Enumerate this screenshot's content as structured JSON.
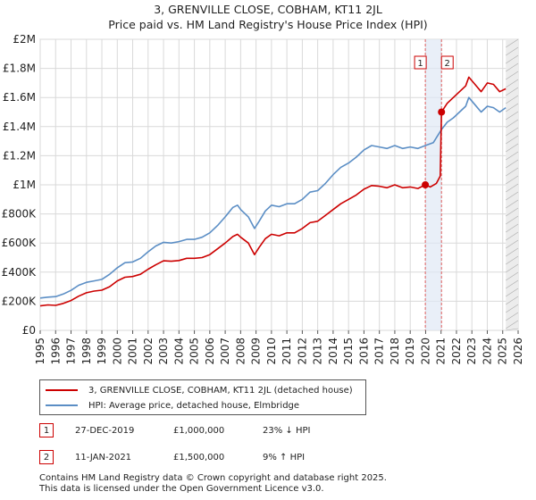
{
  "title_line1": "3, GRENVILLE CLOSE, COBHAM, KT11 2JL",
  "title_line2": "Price paid vs. HM Land Registry's House Price Index (HPI)",
  "chart_data": {
    "type": "line",
    "x_range": [
      1995,
      2026
    ],
    "ylim": [
      0,
      2000000
    ],
    "y_ticks": [
      {
        "value": 0,
        "label": "£0"
      },
      {
        "value": 200000,
        "label": "£200K"
      },
      {
        "value": 400000,
        "label": "£400K"
      },
      {
        "value": 600000,
        "label": "£600K"
      },
      {
        "value": 800000,
        "label": "£800K"
      },
      {
        "value": 1000000,
        "label": "£1M"
      },
      {
        "value": 1200000,
        "label": "£1.2M"
      },
      {
        "value": 1400000,
        "label": "£1.4M"
      },
      {
        "value": 1600000,
        "label": "£1.6M"
      },
      {
        "value": 1800000,
        "label": "£1.8M"
      },
      {
        "value": 2000000,
        "label": "£2M"
      }
    ],
    "x_ticks": [
      "1995",
      "1996",
      "1997",
      "1998",
      "1999",
      "2000",
      "2001",
      "2002",
      "2003",
      "2004",
      "2005",
      "2006",
      "2007",
      "2008",
      "2009",
      "2010",
      "2011",
      "2012",
      "2013",
      "2014",
      "2015",
      "2016",
      "2017",
      "2018",
      "2019",
      "2020",
      "2021",
      "2022",
      "2023",
      "2024",
      "2025",
      "2026"
    ],
    "series": [
      {
        "name": "3, GRENVILLE CLOSE, COBHAM, KT11 2JL (detached house)",
        "color": "#cc0000",
        "points": [
          [
            1995.0,
            168000
          ],
          [
            1995.5,
            175000
          ],
          [
            1996.0,
            172000
          ],
          [
            1996.5,
            185000
          ],
          [
            1997.0,
            205000
          ],
          [
            1997.5,
            235000
          ],
          [
            1998.0,
            258000
          ],
          [
            1998.5,
            270000
          ],
          [
            1999.0,
            276000
          ],
          [
            1999.5,
            300000
          ],
          [
            2000.0,
            340000
          ],
          [
            2000.5,
            365000
          ],
          [
            2001.0,
            370000
          ],
          [
            2001.5,
            385000
          ],
          [
            2002.0,
            420000
          ],
          [
            2002.5,
            450000
          ],
          [
            2003.0,
            478000
          ],
          [
            2003.5,
            475000
          ],
          [
            2004.0,
            480000
          ],
          [
            2004.5,
            495000
          ],
          [
            2005.0,
            495000
          ],
          [
            2005.5,
            500000
          ],
          [
            2006.0,
            520000
          ],
          [
            2006.5,
            560000
          ],
          [
            2007.0,
            600000
          ],
          [
            2007.5,
            645000
          ],
          [
            2007.8,
            660000
          ],
          [
            2008.0,
            640000
          ],
          [
            2008.5,
            600000
          ],
          [
            2008.9,
            520000
          ],
          [
            2009.2,
            570000
          ],
          [
            2009.6,
            630000
          ],
          [
            2010.0,
            660000
          ],
          [
            2010.5,
            650000
          ],
          [
            2011.0,
            670000
          ],
          [
            2011.5,
            670000
          ],
          [
            2012.0,
            700000
          ],
          [
            2012.5,
            740000
          ],
          [
            2013.0,
            750000
          ],
          [
            2013.5,
            790000
          ],
          [
            2014.0,
            830000
          ],
          [
            2014.5,
            870000
          ],
          [
            2015.0,
            900000
          ],
          [
            2015.5,
            930000
          ],
          [
            2016.0,
            970000
          ],
          [
            2016.5,
            995000
          ],
          [
            2017.0,
            990000
          ],
          [
            2017.5,
            980000
          ],
          [
            2018.0,
            1000000
          ],
          [
            2018.5,
            980000
          ],
          [
            2019.0,
            985000
          ],
          [
            2019.5,
            975000
          ],
          [
            2019.98,
            1000000
          ],
          [
            2020.3,
            985000
          ],
          [
            2020.7,
            1010000
          ],
          [
            2020.95,
            1060000
          ],
          [
            2021.03,
            1500000
          ],
          [
            2021.4,
            1560000
          ],
          [
            2021.8,
            1600000
          ],
          [
            2022.2,
            1640000
          ],
          [
            2022.6,
            1680000
          ],
          [
            2022.8,
            1740000
          ],
          [
            2023.2,
            1690000
          ],
          [
            2023.6,
            1640000
          ],
          [
            2024.0,
            1700000
          ],
          [
            2024.4,
            1690000
          ],
          [
            2024.8,
            1640000
          ],
          [
            2025.2,
            1660000
          ]
        ]
      },
      {
        "name": "HPI: Average price, detached house, Elmbridge",
        "color": "#5b8ec5",
        "points": [
          [
            1995.0,
            222000
          ],
          [
            1995.5,
            228000
          ],
          [
            1996.0,
            232000
          ],
          [
            1996.5,
            250000
          ],
          [
            1997.0,
            275000
          ],
          [
            1997.5,
            310000
          ],
          [
            1998.0,
            330000
          ],
          [
            1998.5,
            340000
          ],
          [
            1999.0,
            350000
          ],
          [
            1999.5,
            385000
          ],
          [
            2000.0,
            430000
          ],
          [
            2000.5,
            465000
          ],
          [
            2001.0,
            470000
          ],
          [
            2001.5,
            495000
          ],
          [
            2002.0,
            540000
          ],
          [
            2002.5,
            580000
          ],
          [
            2003.0,
            605000
          ],
          [
            2003.5,
            600000
          ],
          [
            2004.0,
            610000
          ],
          [
            2004.5,
            625000
          ],
          [
            2005.0,
            625000
          ],
          [
            2005.5,
            640000
          ],
          [
            2006.0,
            670000
          ],
          [
            2006.5,
            720000
          ],
          [
            2007.0,
            780000
          ],
          [
            2007.5,
            845000
          ],
          [
            2007.8,
            860000
          ],
          [
            2008.0,
            830000
          ],
          [
            2008.5,
            780000
          ],
          [
            2008.9,
            700000
          ],
          [
            2009.2,
            750000
          ],
          [
            2009.6,
            820000
          ],
          [
            2010.0,
            860000
          ],
          [
            2010.5,
            850000
          ],
          [
            2011.0,
            870000
          ],
          [
            2011.5,
            870000
          ],
          [
            2012.0,
            900000
          ],
          [
            2012.5,
            950000
          ],
          [
            2013.0,
            960000
          ],
          [
            2013.5,
            1010000
          ],
          [
            2014.0,
            1070000
          ],
          [
            2014.5,
            1120000
          ],
          [
            2015.0,
            1150000
          ],
          [
            2015.5,
            1190000
          ],
          [
            2016.0,
            1240000
          ],
          [
            2016.5,
            1270000
          ],
          [
            2017.0,
            1260000
          ],
          [
            2017.5,
            1250000
          ],
          [
            2018.0,
            1270000
          ],
          [
            2018.5,
            1250000
          ],
          [
            2019.0,
            1260000
          ],
          [
            2019.5,
            1250000
          ],
          [
            2019.98,
            1270000
          ],
          [
            2020.5,
            1290000
          ],
          [
            2021.03,
            1380000
          ],
          [
            2021.4,
            1430000
          ],
          [
            2021.8,
            1460000
          ],
          [
            2022.2,
            1500000
          ],
          [
            2022.6,
            1540000
          ],
          [
            2022.8,
            1600000
          ],
          [
            2023.2,
            1550000
          ],
          [
            2023.6,
            1500000
          ],
          [
            2024.0,
            1540000
          ],
          [
            2024.4,
            1530000
          ],
          [
            2024.8,
            1500000
          ],
          [
            2025.2,
            1530000
          ]
        ]
      }
    ],
    "sales": [
      {
        "label": "1",
        "x": 2019.98,
        "value": 1000000
      },
      {
        "label": "2",
        "x": 2021.03,
        "value": 1500000
      }
    ],
    "forecast_start": 2025.2
  },
  "legend": {
    "series1": "3, GRENVILLE CLOSE, COBHAM, KT11 2JL (detached house)",
    "series2": "HPI: Average price, detached house, Elmbridge"
  },
  "sales_table": [
    {
      "num": "1",
      "date": "27-DEC-2019",
      "price": "£1,000,000",
      "hpi": "23% ↓ HPI"
    },
    {
      "num": "2",
      "date": "11-JAN-2021",
      "price": "£1,500,000",
      "hpi": "9% ↑ HPI"
    }
  ],
  "footer": {
    "line1": "Contains HM Land Registry data © Crown copyright and database right 2025.",
    "line2": "This data is licensed under the Open Government Licence v3.0."
  }
}
